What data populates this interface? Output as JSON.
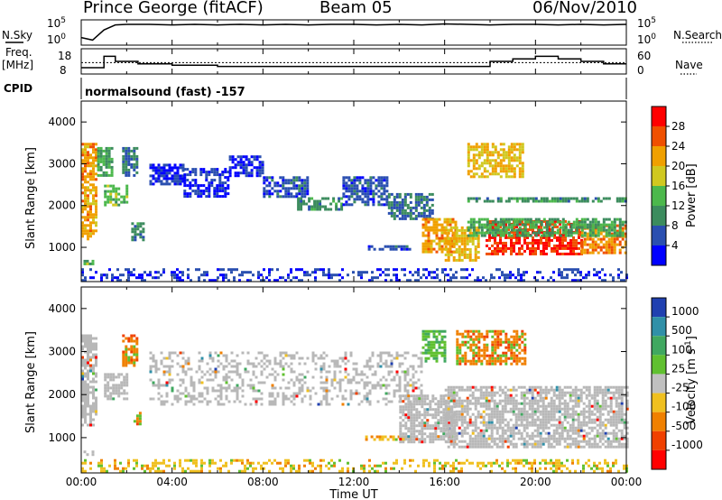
{
  "header": {
    "station": "Prince George (fitACF)",
    "beam": "Beam 05",
    "date": "06/Nov/2010"
  },
  "side_labels": {
    "nsky": "N.Sky",
    "nsearch": "N.Search",
    "freq_line1": "Freq.",
    "freq_line2": "[MHz]",
    "nave": "Nave",
    "cpid": "CPID"
  },
  "program": "normalsound (fast) -157",
  "colors": {
    "power": [
      "#0000ff",
      "#2a4fb0",
      "#3c8c5e",
      "#4cb84c",
      "#d0c820",
      "#f0a000",
      "#f05000",
      "#ff0000"
    ],
    "velocity": [
      "#2040b0",
      "#3090a8",
      "#40a860",
      "#60c030",
      "#c0c0c0",
      "#f0c020",
      "#f08000",
      "#f04000",
      "#ff0000"
    ],
    "ground_scatter": "#b8b8b8"
  },
  "chart_data": [
    {
      "type": "line",
      "panel": "noise",
      "x": [
        0,
        0.5,
        1.0,
        1.5,
        2,
        3,
        4,
        5,
        6,
        7,
        8,
        9,
        10,
        11,
        12,
        13,
        14,
        15,
        16,
        17,
        18,
        19,
        20,
        21,
        22,
        23,
        24
      ],
      "series": [
        {
          "name": "N.Sky",
          "values": [
            1.5,
            1.0,
            3.0,
            4.0,
            4.1,
            4.1,
            4.0,
            4.1,
            4.0,
            4.1,
            4.0,
            4.1,
            4.0,
            4.1,
            4.1,
            4.0,
            4.1,
            4.0,
            4.2,
            4.1,
            4.0,
            4.1,
            4.1,
            4.0,
            4.1,
            4.0,
            4.1
          ]
        }
      ],
      "left_ticks": [
        "10^5",
        "10^0"
      ],
      "right_ticks": [
        "10^5",
        "10^0"
      ],
      "ylim": [
        0,
        5
      ]
    },
    {
      "type": "line",
      "panel": "frequency",
      "x": [
        0,
        0.5,
        1.0,
        1.5,
        2.5,
        4,
        6,
        8,
        10,
        12,
        14,
        15,
        16,
        17,
        18,
        19,
        20,
        21,
        22,
        23,
        24
      ],
      "series": [
        {
          "name": "Freq.",
          "values": [
            10.5,
            10.5,
            15.0,
            13.0,
            12.0,
            11.5,
            11.0,
            11.0,
            11.0,
            11.0,
            11.0,
            11.0,
            11.0,
            11.0,
            13.0,
            14.0,
            15.0,
            14.0,
            13.0,
            12.0,
            12.0
          ]
        }
      ],
      "dotted_reference": 12.5,
      "left_ticks": [
        18,
        8
      ],
      "right_ticks": [
        60,
        0
      ],
      "ylim": [
        8,
        18
      ]
    },
    {
      "type": "heatmap",
      "panel": "power",
      "xlabel": "",
      "ylabel": "Slant Range [km]",
      "xlim": [
        0,
        24
      ],
      "ylim": [
        180,
        4500
      ],
      "yticks": [
        1000,
        2000,
        3000,
        4000
      ],
      "colorbar": {
        "label": "Power [dB]",
        "ticks": [
          4,
          8,
          12,
          16,
          20,
          24,
          28
        ],
        "range": [
          0,
          32
        ]
      },
      "regions": [
        {
          "t": [
            0.0,
            0.6
          ],
          "r": [
            1200,
            3500
          ],
          "level": 22
        },
        {
          "t": [
            0.1,
            0.5
          ],
          "r": [
            600,
            700
          ],
          "level": 14
        },
        {
          "t": [
            0.7,
            1.3
          ],
          "r": [
            2700,
            3400
          ],
          "level": 12
        },
        {
          "t": [
            1.0,
            2.0
          ],
          "r": [
            2000,
            2500
          ],
          "level": 14
        },
        {
          "t": [
            1.8,
            2.5
          ],
          "r": [
            2700,
            3400
          ],
          "level": 8
        },
        {
          "t": [
            2.2,
            2.7
          ],
          "r": [
            1200,
            1600
          ],
          "level": 10
        },
        {
          "t": [
            3.0,
            4.5
          ],
          "r": [
            2500,
            3000
          ],
          "level": 4
        },
        {
          "t": [
            4.5,
            6.5
          ],
          "r": [
            2200,
            2900
          ],
          "level": 4
        },
        {
          "t": [
            6.5,
            8.0
          ],
          "r": [
            2700,
            3200
          ],
          "level": 4
        },
        {
          "t": [
            8.0,
            10.0
          ],
          "r": [
            2200,
            2700
          ],
          "level": 6
        },
        {
          "t": [
            9.5,
            11.5
          ],
          "r": [
            1900,
            2200
          ],
          "level": 10
        },
        {
          "t": [
            11.5,
            13.5
          ],
          "r": [
            2000,
            2700
          ],
          "level": 6
        },
        {
          "t": [
            13.5,
            15.5
          ],
          "r": [
            1700,
            2300
          ],
          "level": 8
        },
        {
          "t": [
            15.0,
            16.5
          ],
          "r": [
            900,
            1700
          ],
          "level": 22
        },
        {
          "t": [
            12.5,
            14.5
          ],
          "r": [
            950,
            1050
          ],
          "level": 6
        },
        {
          "t": [
            16.0,
            17.5
          ],
          "r": [
            700,
            1500
          ],
          "level": 20
        },
        {
          "t": [
            17.8,
            22.0
          ],
          "r": [
            850,
            1650
          ],
          "level": 28
        },
        {
          "t": [
            22.0,
            24.0
          ],
          "r": [
            900,
            1550
          ],
          "level": 24
        },
        {
          "t": [
            17.0,
            19.5
          ],
          "r": [
            2700,
            3500
          ],
          "level": 20
        },
        {
          "t": [
            17.0,
            24.0
          ],
          "r": [
            2100,
            2200
          ],
          "level": 10
        },
        {
          "t": [
            17.0,
            24.0
          ],
          "r": [
            1300,
            1700
          ],
          "level": 12
        },
        {
          "t": [
            0.0,
            24.0
          ],
          "r": [
            200,
            500
          ],
          "level": 5
        }
      ]
    },
    {
      "type": "heatmap",
      "panel": "velocity",
      "xlabel": "Time UT",
      "ylabel": "Slant Range [km]",
      "xlim": [
        0,
        24
      ],
      "ylim": [
        180,
        4500
      ],
      "xticks": [
        "00:00",
        "04:00",
        "08:00",
        "12:00",
        "16:00",
        "20:00",
        "00:00"
      ],
      "yticks": [
        1000,
        2000,
        3000,
        4000
      ],
      "colorbar": {
        "label": "Velocity [m s-1]",
        "ticks": [
          1000,
          500,
          100,
          25,
          -25,
          -100,
          -500,
          -1000
        ]
      },
      "regions": [
        {
          "t": [
            0.0,
            0.6
          ],
          "r": [
            1300,
            3400
          ],
          "class": "ground"
        },
        {
          "t": [
            0.1,
            0.5
          ],
          "r": [
            600,
            700
          ],
          "class": "ground"
        },
        {
          "t": [
            1.0,
            2.0
          ],
          "r": [
            1900,
            2500
          ],
          "class": "ground"
        },
        {
          "t": [
            1.8,
            2.5
          ],
          "r": [
            2700,
            3400
          ],
          "class": "orange"
        },
        {
          "t": [
            2.3,
            2.6
          ],
          "r": [
            1300,
            1600
          ],
          "class": "orange"
        },
        {
          "t": [
            3.0,
            15.0
          ],
          "r": [
            1800,
            3000
          ],
          "class": "ground"
        },
        {
          "t": [
            12.5,
            14.5
          ],
          "r": [
            950,
            1050
          ],
          "class": "yellow"
        },
        {
          "t": [
            14.0,
            16.5
          ],
          "r": [
            900,
            2000
          ],
          "class": "ground"
        },
        {
          "t": [
            16.0,
            24.0
          ],
          "r": [
            800,
            2200
          ],
          "class": "ground"
        },
        {
          "t": [
            16.5,
            19.5
          ],
          "r": [
            2700,
            3500
          ],
          "class": "orange"
        },
        {
          "t": [
            15.0,
            16.0
          ],
          "r": [
            2800,
            3500
          ],
          "class": "green"
        },
        {
          "t": [
            0.0,
            24.0
          ],
          "r": [
            200,
            500
          ],
          "class": "yellow"
        }
      ]
    }
  ]
}
